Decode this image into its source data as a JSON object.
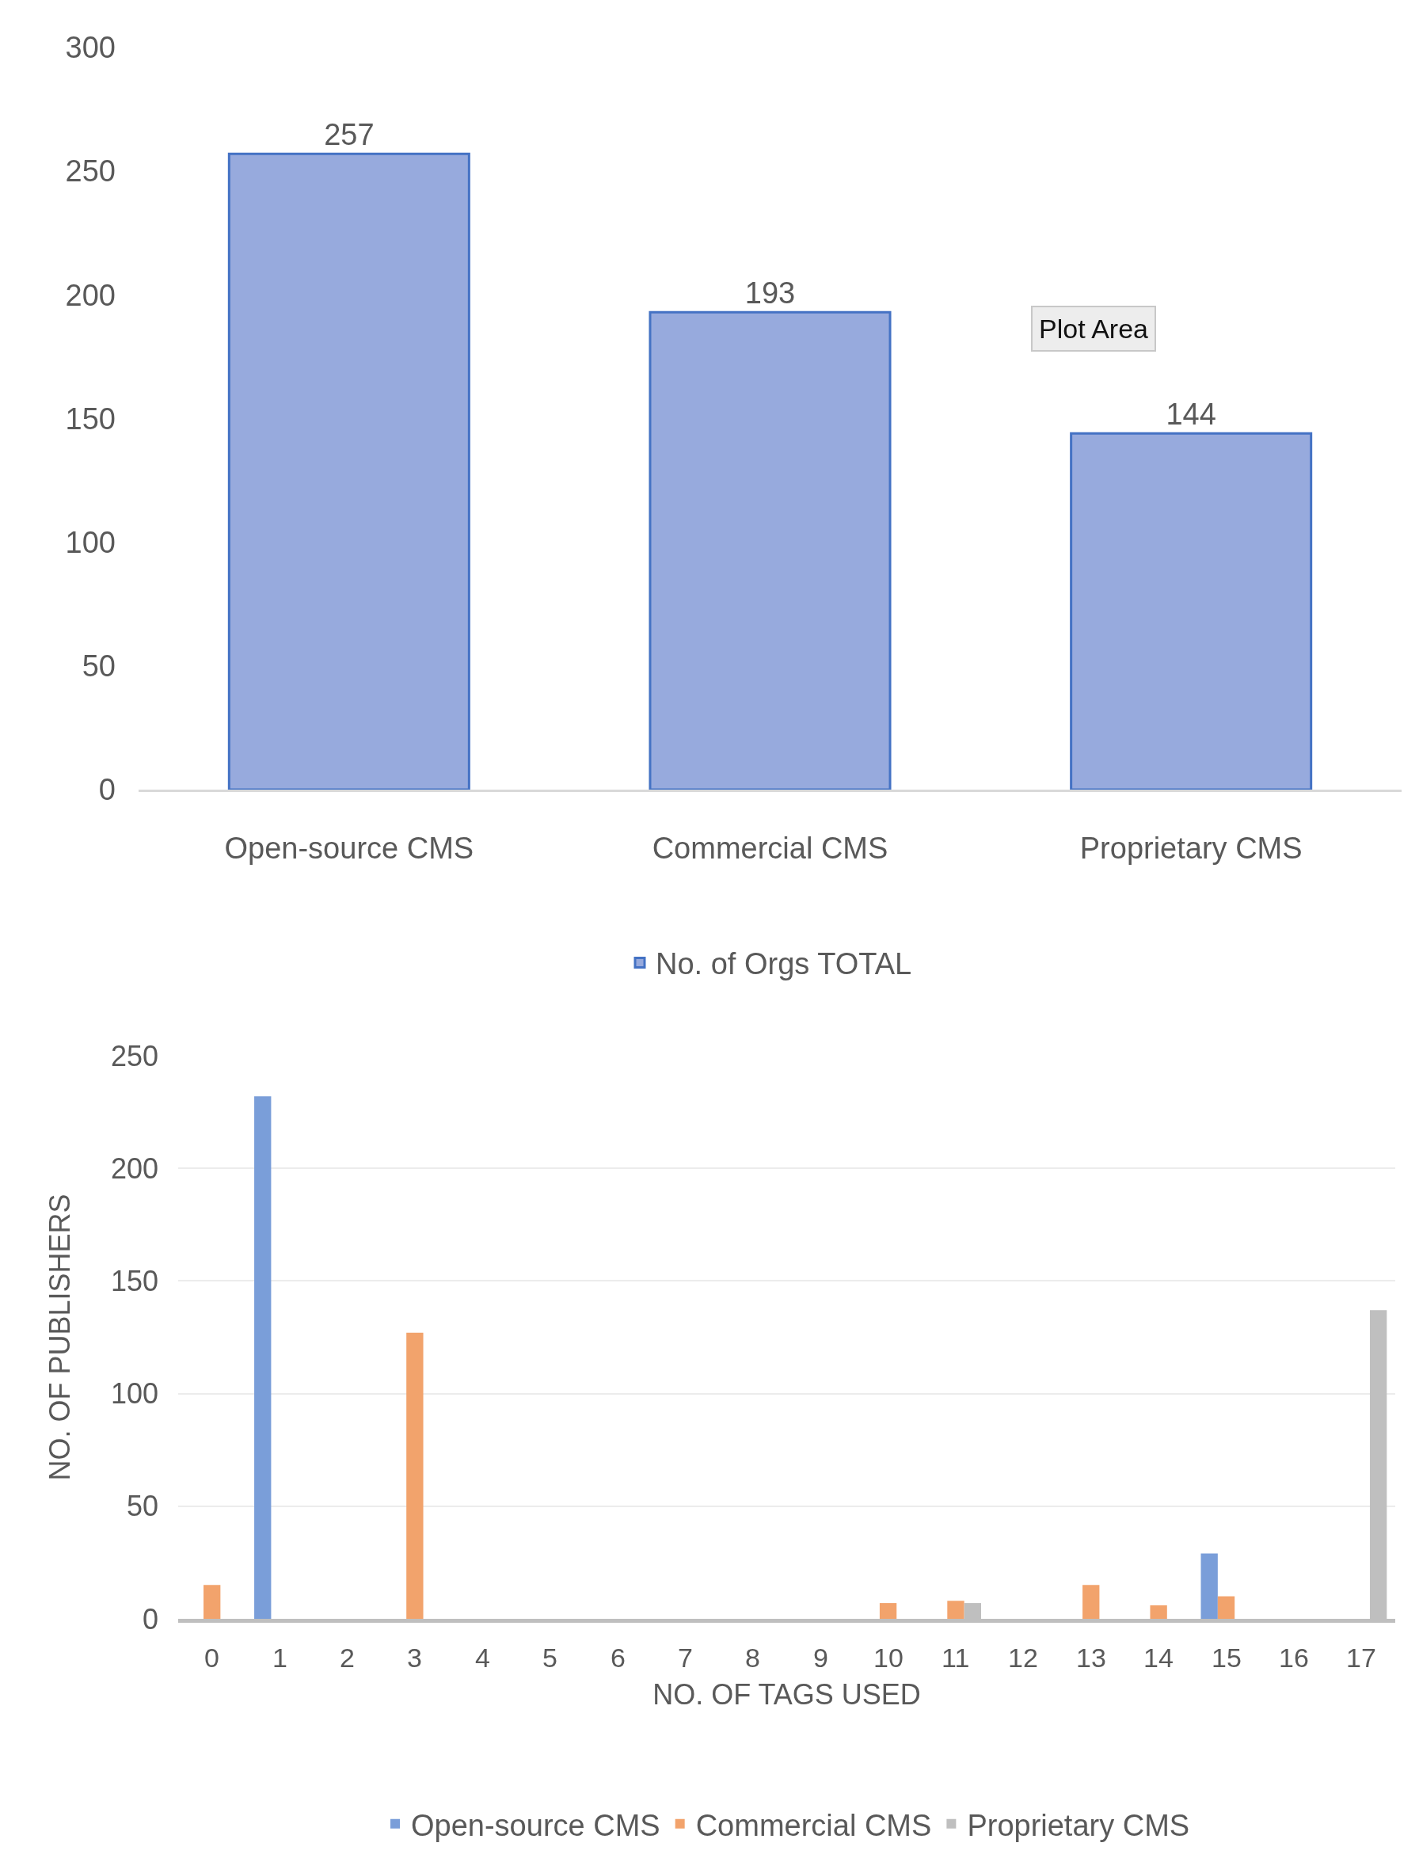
{
  "chart_data": [
    {
      "type": "bar",
      "categories": [
        "Open-source CMS",
        "Commercial CMS",
        "Proprietary CMS"
      ],
      "series": [
        {
          "name": "No. of Orgs TOTAL",
          "color": "#97aadd",
          "values": [
            257,
            193,
            144
          ]
        }
      ],
      "ylim": [
        0,
        300
      ],
      "yticks": [
        0,
        50,
        100,
        150,
        200,
        250,
        300
      ],
      "grid": false,
      "legend": "bottom",
      "data_labels": true,
      "annotations": [
        "Plot Area"
      ]
    },
    {
      "type": "bar",
      "categories": [
        "0",
        "1",
        "2",
        "3",
        "4",
        "5",
        "6",
        "7",
        "8",
        "9",
        "10",
        "11",
        "12",
        "13",
        "14",
        "15",
        "16",
        "17"
      ],
      "series": [
        {
          "name": "Open-source CMS",
          "color": "#7a9ed9",
          "values": [
            null,
            232,
            null,
            null,
            null,
            null,
            null,
            null,
            null,
            null,
            null,
            null,
            null,
            null,
            null,
            29,
            null,
            null
          ]
        },
        {
          "name": "Commercial CMS",
          "color": "#f2a36c",
          "values": [
            15,
            null,
            null,
            127,
            null,
            null,
            null,
            null,
            null,
            null,
            7,
            8,
            null,
            15,
            6,
            10,
            null,
            null
          ]
        },
        {
          "name": "Proprietary CMS",
          "color": "#bfbfbf",
          "values": [
            null,
            null,
            null,
            null,
            null,
            null,
            null,
            null,
            null,
            null,
            null,
            7,
            null,
            null,
            null,
            null,
            null,
            137
          ]
        }
      ],
      "ylim": [
        0,
        250
      ],
      "yticks": [
        0,
        50,
        100,
        150,
        200,
        250
      ],
      "grid": "y",
      "legend": "bottom",
      "xlabel": "NO. OF TAGS USED",
      "ylabel": "NO. OF PUBLISHERS"
    }
  ]
}
